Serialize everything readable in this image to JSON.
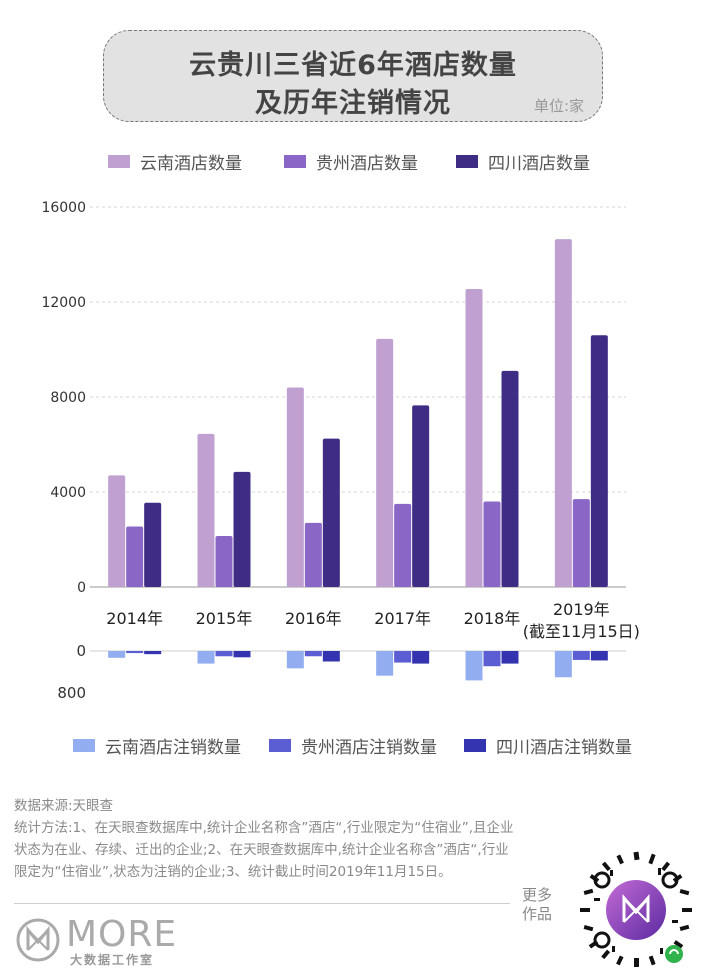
{
  "header": {
    "title_line1": "云贵川三省近6年酒店数量",
    "title_line2": "及历年注销情况",
    "unit": "单位:家"
  },
  "legend_top": [
    {
      "label": "云南酒店数量",
      "color": "#bfa0d0"
    },
    {
      "label": "贵州酒店数量",
      "color": "#8a66c6"
    },
    {
      "label": "四川酒店数量",
      "color": "#3f2c84"
    }
  ],
  "legend_bottom": [
    {
      "label": "云南酒店注销数量",
      "color": "#93aef0"
    },
    {
      "label": "贵州酒店注销数量",
      "color": "#5a5ed2"
    },
    {
      "label": "四川酒店注销数量",
      "color": "#3434b0"
    }
  ],
  "chart_data": [
    {
      "type": "bar",
      "title": "云贵川三省近6年酒店数量",
      "categories": [
        "2014年",
        "2015年",
        "2016年",
        "2017年",
        "2018年",
        "2019年"
      ],
      "category_notes": [
        "",
        "",
        "",
        "",
        "",
        "(截至11月15日)"
      ],
      "series": [
        {
          "name": "云南酒店数量",
          "values": [
            4700,
            6450,
            8400,
            10450,
            12550,
            14650
          ]
        },
        {
          "name": "贵州酒店数量",
          "values": [
            2550,
            2150,
            2700,
            3500,
            3600,
            3700
          ]
        },
        {
          "name": "四川酒店数量",
          "values": [
            3550,
            4850,
            6250,
            7650,
            9100,
            10600
          ]
        }
      ],
      "ylim": [
        0,
        16000
      ],
      "yticks": [
        "0",
        "4000",
        "8000",
        "12000",
        "16000"
      ],
      "grid": true
    },
    {
      "type": "bar",
      "title": "历年注销情况",
      "categories": [
        "2014年",
        "2015年",
        "2016年",
        "2017年",
        "2018年",
        "2019年"
      ],
      "series": [
        {
          "name": "云南酒店注销数量",
          "values": [
            130,
            240,
            330,
            470,
            560,
            500
          ]
        },
        {
          "name": "贵州酒店注销数量",
          "values": [
            40,
            100,
            100,
            220,
            290,
            170
          ]
        },
        {
          "name": "四川酒店注销数量",
          "values": [
            60,
            120,
            200,
            240,
            240,
            180
          ]
        }
      ],
      "ylim": [
        0,
        800
      ],
      "yticks": [
        "0",
        "800"
      ],
      "inverted": true
    }
  ],
  "footer": {
    "source": "数据来源:天眼查",
    "method": "统计方法:1、在天眼查数据库中,统计企业名称含”酒店“,行业限定为“住宿业”,且企业状态为在业、存续、迁出的企业;2、在天眼查数据库中,统计企业名称含”酒店“,行业限定为“住宿业”,状态为注销的企业;3、统计截止时间2019年11月15日。",
    "logo_text": "MORE",
    "logo_sub": "大数据工作室",
    "more_label": "更多作品"
  }
}
